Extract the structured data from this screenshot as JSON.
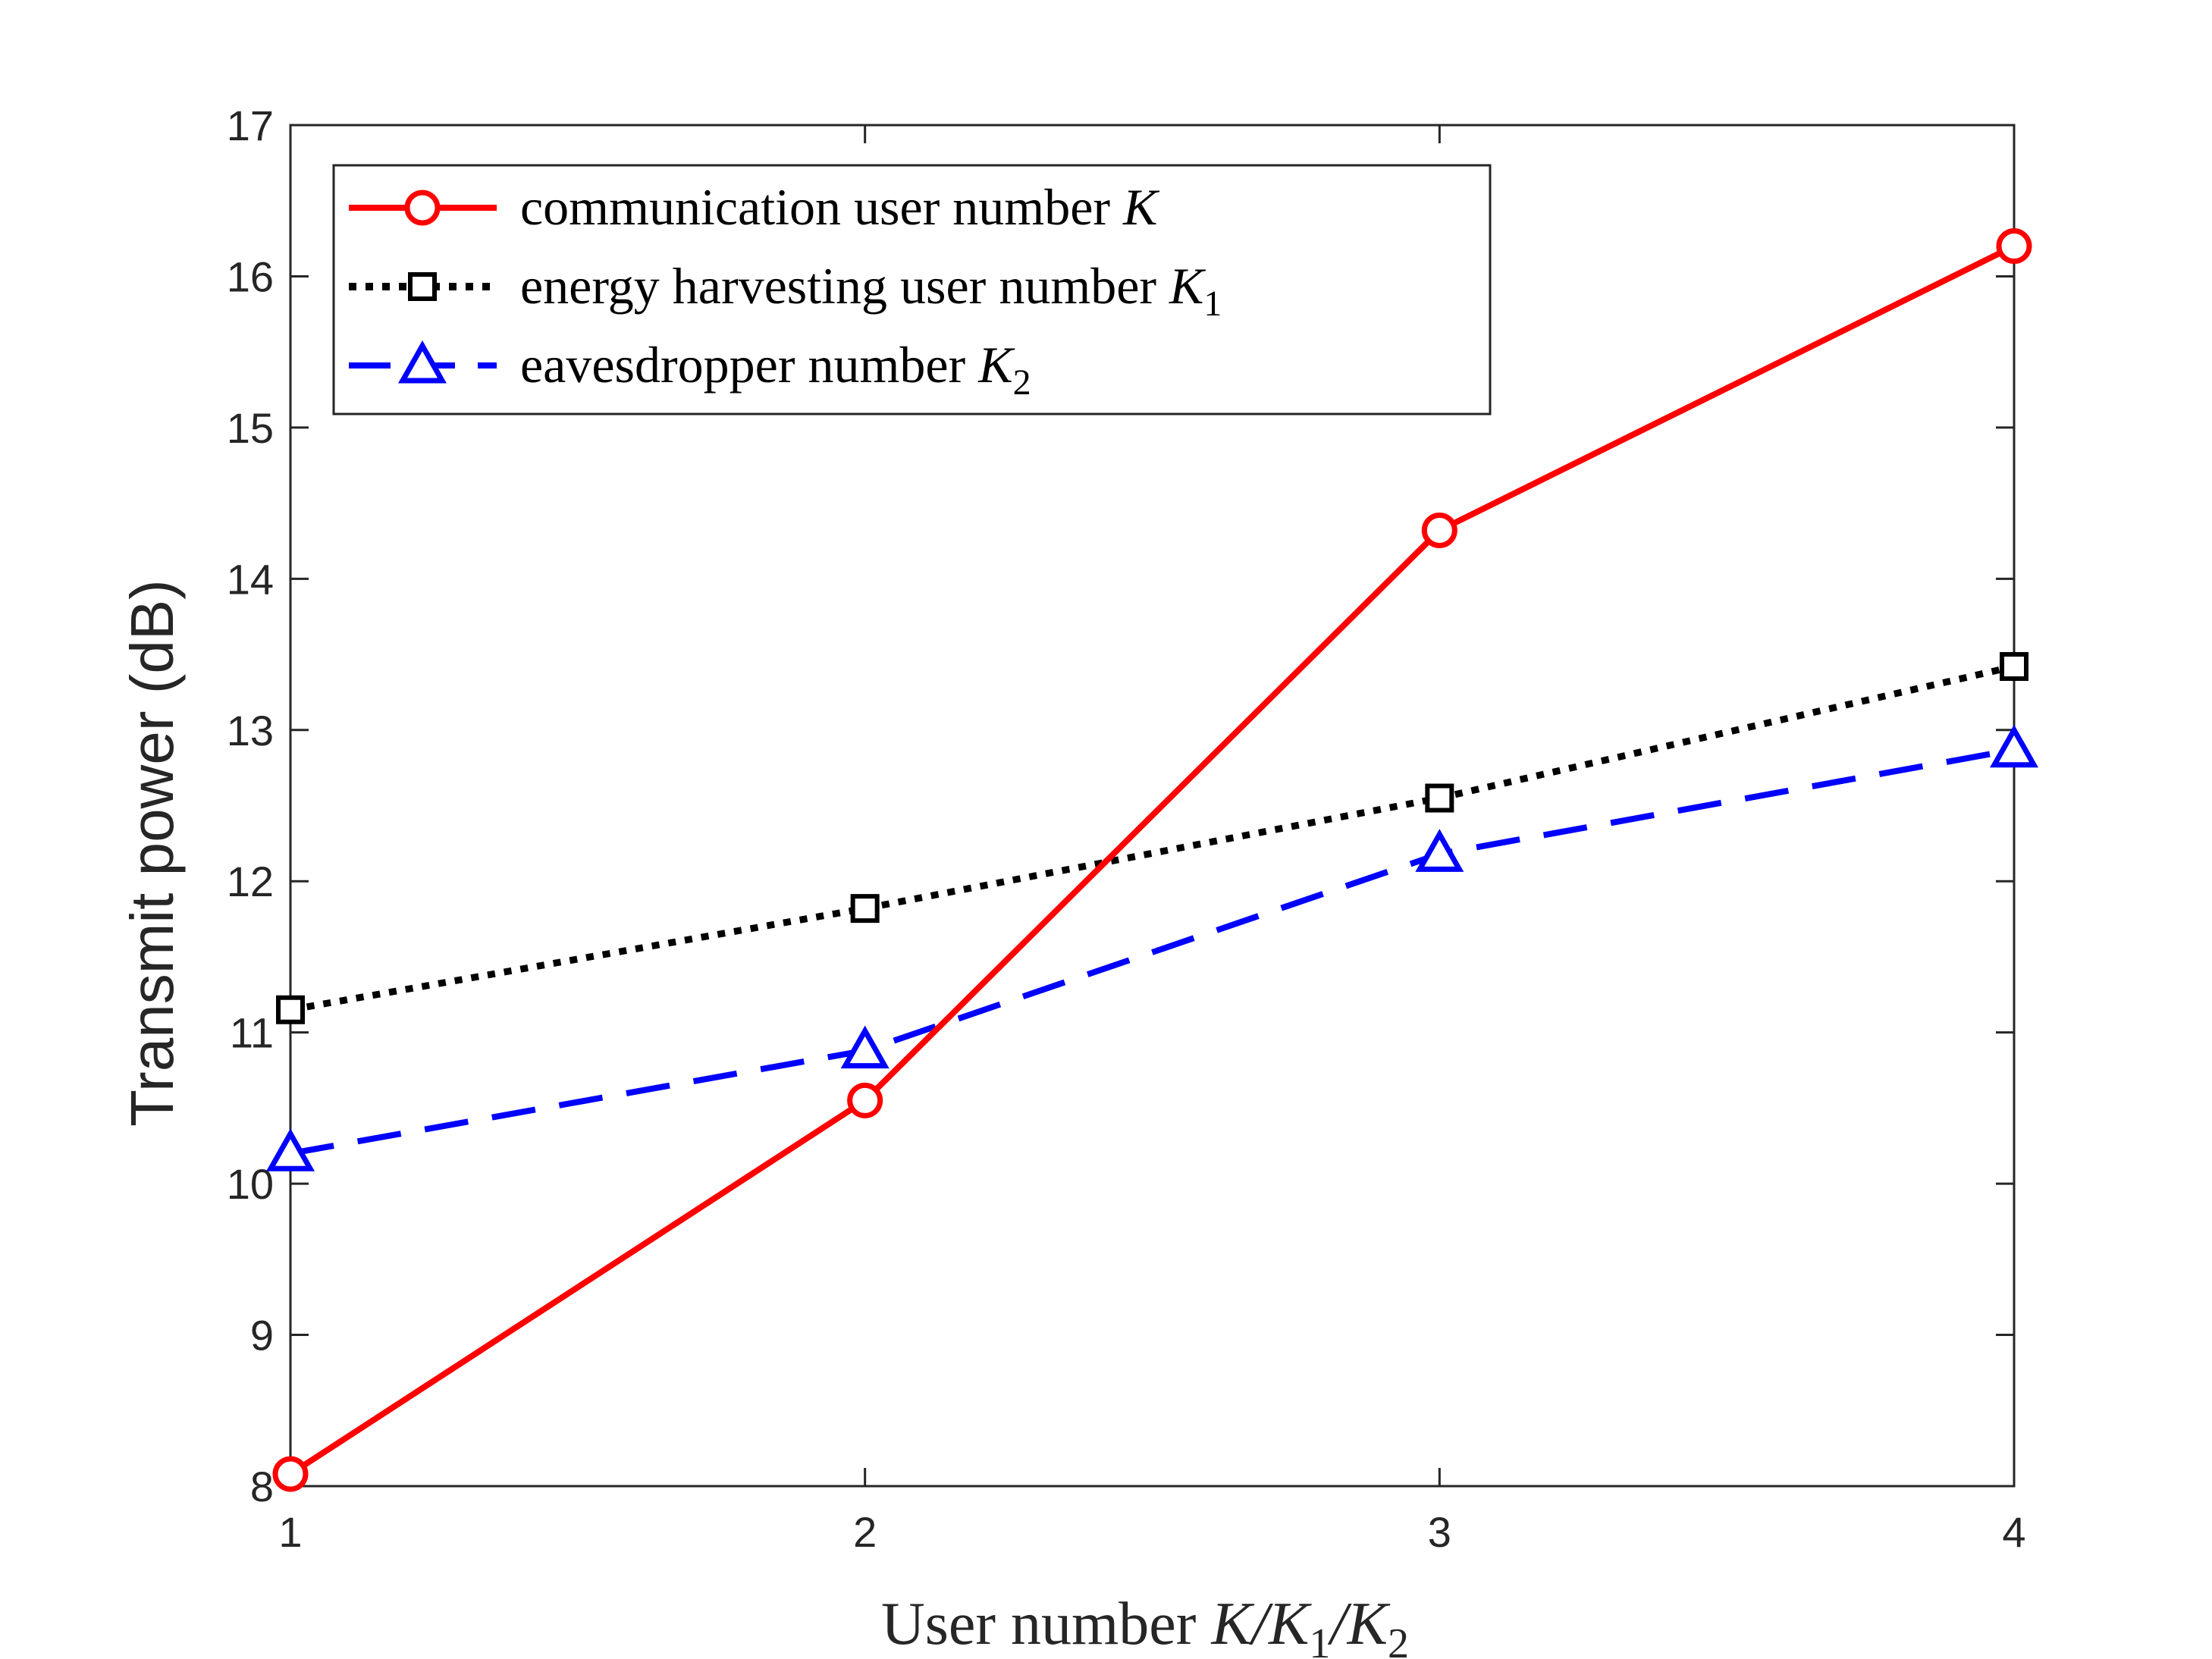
{
  "chart_data": {
    "type": "line",
    "x": [
      1,
      2,
      3,
      4
    ],
    "xlim": [
      1,
      4
    ],
    "ylim": [
      8,
      17
    ],
    "xticks": [
      1,
      2,
      3,
      4
    ],
    "yticks": [
      8,
      9,
      10,
      11,
      12,
      13,
      14,
      15,
      16,
      17
    ],
    "xlabel": {
      "prefix": "User number ",
      "math": [
        {
          "base": "K",
          "sub": ""
        },
        {
          "sep": "/"
        },
        {
          "base": "K",
          "sub": "1"
        },
        {
          "sep": "/"
        },
        {
          "base": "K",
          "sub": "2"
        }
      ]
    },
    "ylabel": "Transmit power (dB)",
    "grid": false,
    "legend_position": "top-left",
    "series": [
      {
        "name_text": "communication user number ",
        "name_math": "K",
        "name_sub": "",
        "values": [
          8.08,
          10.55,
          14.32,
          16.2
        ],
        "color": "#ff0000",
        "line_style": "solid",
        "marker": "circle"
      },
      {
        "name_text": "energy harvesting user number ",
        "name_math": "K",
        "name_sub": "1",
        "values": [
          11.15,
          11.82,
          12.55,
          13.42
        ],
        "color": "#000000",
        "line_style": "dotted",
        "marker": "square"
      },
      {
        "name_text": "eavesdropper number ",
        "name_math": "K",
        "name_sub": "2",
        "values": [
          10.2,
          10.88,
          12.18,
          12.87
        ],
        "color": "#0000ff",
        "line_style": "dashed",
        "marker": "triangle"
      }
    ]
  }
}
